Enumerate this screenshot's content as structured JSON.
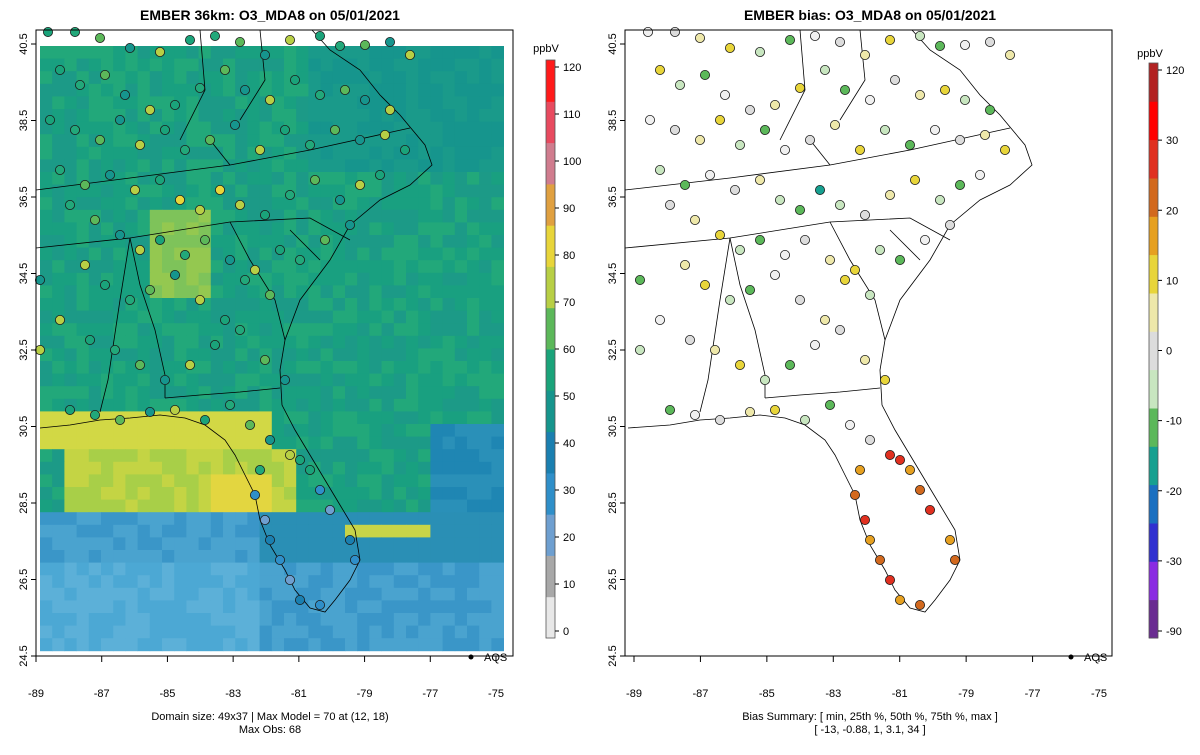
{
  "left_panel": {
    "title": "EMBER 36km: O3_MDA8 on 05/01/2021",
    "y_ticks": [
      "40.5",
      "38.5",
      "36.5",
      "34.5",
      "32.5",
      "30.5",
      "28.5",
      "26.5",
      "24.5"
    ],
    "x_ticks": [
      "-89",
      "-87",
      "-85",
      "-83",
      "-81",
      "-79",
      "-77",
      "-75"
    ],
    "legend_marker_label": "AQS",
    "caption_line1": "Domain size: 49x37 | Max Model = 70 at (12, 18)",
    "caption_line2": "Max Obs: 68",
    "colorbar": {
      "unit": "ppbV",
      "ticks": [
        "120",
        "110",
        "100",
        "90",
        "80",
        "70",
        "60",
        "50",
        "40",
        "30",
        "20",
        "10",
        "0"
      ],
      "colors": [
        "#e8e8e8",
        "#a8a8a8",
        "#6e9fd0",
        "#2f8fc9",
        "#1a7fb0",
        "#16958d",
        "#1aa37a",
        "#5cb85a",
        "#b8cf45",
        "#e8d53a",
        "#e0a040",
        "#d07c8e",
        "#e84a5f",
        "#ff1a1a"
      ]
    }
  },
  "right_panel": {
    "title": "EMBER bias: O3_MDA8 on 05/01/2021",
    "y_ticks": [
      "40.5",
      "38.5",
      "36.5",
      "34.5",
      "32.5",
      "30.5",
      "28.5",
      "26.5",
      "24.5"
    ],
    "x_ticks": [
      "-89",
      "-87",
      "-85",
      "-83",
      "-81",
      "-79",
      "-77",
      "-75"
    ],
    "legend_marker_label": "AQS",
    "caption_line1": "Bias Summary: [ min, 25th %, 50th %, 75th %, max ]",
    "caption_line2": "[ -13,   -0.88,   1,   3.1,   34 ]",
    "colorbar": {
      "unit": "ppbV",
      "ticks": [
        "120",
        "30",
        "20",
        "10",
        "0",
        "-10",
        "-20",
        "-30",
        "-90"
      ],
      "colors": [
        "#6a2c91",
        "#8a2be2",
        "#3030d0",
        "#1a6fc0",
        "#17a090",
        "#5cb85a",
        "#c8e6c0",
        "#dcdcdc",
        "#eee8aa",
        "#e8d53a",
        "#e6a020",
        "#d2691e",
        "#e03020",
        "#ff0000",
        "#b22222"
      ]
    }
  }
}
